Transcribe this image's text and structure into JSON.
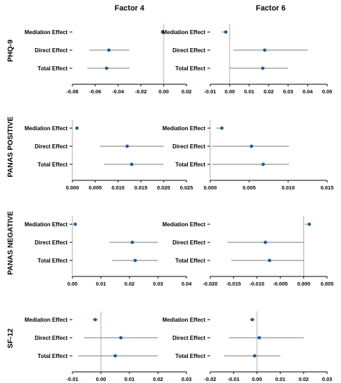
{
  "columns": [
    "Factor 4",
    "Factor 6"
  ],
  "rows": [
    "PHQ-9",
    "PANAS POSITIVE",
    "PANAS NEGATIVE",
    "SF-12"
  ],
  "colors": {
    "point": "#1f5c99",
    "ci": "#4d4d4d",
    "zero_line": "#a6a6a6"
  },
  "chart_data": [
    {
      "type": "scatter",
      "row": "PHQ-9",
      "column": "Factor 4",
      "categories": [
        "Mediation Effect",
        "Direct Effect",
        "Total Effect"
      ],
      "xlim": [
        -0.08,
        0.02
      ],
      "xticks": [
        "-0.08",
        "-0.06",
        "-0.04",
        "-0.02",
        "0.00",
        "0.02"
      ],
      "estimates": [
        -0.001,
        -0.048,
        -0.05
      ],
      "lower": [
        -0.001,
        -0.065,
        -0.067
      ],
      "upper": [
        -0.001,
        -0.03,
        -0.03
      ]
    },
    {
      "type": "scatter",
      "row": "PHQ-9",
      "column": "Factor 6",
      "categories": [
        "Mediation Effect",
        "Direct Effect",
        "Total Effect"
      ],
      "xlim": [
        -0.01,
        0.05
      ],
      "xticks": [
        "-0.01",
        "0.00",
        "0.01",
        "0.02",
        "0.03",
        "0.04",
        "0.05"
      ],
      "estimates": [
        -0.002,
        0.018,
        0.017
      ],
      "lower": [
        -0.004,
        0.002,
        0.0
      ],
      "upper": [
        -0.001,
        0.04,
        0.03
      ]
    },
    {
      "type": "scatter",
      "row": "PANAS POSITIVE",
      "column": "Factor 4",
      "categories": [
        "Mediation Effect",
        "Direct Effect",
        "Total Effect"
      ],
      "xlim": [
        0.0,
        0.025
      ],
      "xticks": [
        "0.000",
        "0.005",
        "0.010",
        "0.015",
        "0.020",
        "0.025"
      ],
      "estimates": [
        0.001,
        0.012,
        0.013
      ],
      "lower": [
        0.001,
        0.006,
        0.007
      ],
      "upper": [
        0.001,
        0.02,
        0.02
      ]
    },
    {
      "type": "scatter",
      "row": "PANAS POSITIVE",
      "column": "Factor 6",
      "categories": [
        "Mediation Effect",
        "Direct Effect",
        "Total Effect"
      ],
      "xlim": [
        0.0,
        0.015
      ],
      "xticks": [
        "0.000",
        "0.005",
        "0.010",
        "0.015"
      ],
      "estimates": [
        0.0015,
        0.0053,
        0.0068
      ],
      "lower": [
        0.0008,
        0.0002,
        0.0003
      ],
      "upper": [
        0.0015,
        0.0101,
        0.0101
      ]
    },
    {
      "type": "scatter",
      "row": "PANAS NEGATIVE",
      "column": "Factor 4",
      "categories": [
        "Mediation Effect",
        "Direct Effect",
        "Total Effect"
      ],
      "xlim": [
        0.0,
        0.04
      ],
      "xticks": [
        "0.00",
        "0.01",
        "0.02",
        "0.03",
        "0.04"
      ],
      "estimates": [
        0.001,
        0.021,
        0.022
      ],
      "lower": [
        0.001,
        0.013,
        0.014
      ],
      "upper": [
        0.001,
        0.03,
        0.03
      ]
    },
    {
      "type": "scatter",
      "row": "PANAS NEGATIVE",
      "column": "Factor 6",
      "categories": [
        "Mediation Effect",
        "Direct Effect",
        "Total Effect"
      ],
      "xlim": [
        -0.02,
        0.005
      ],
      "xticks": [
        "-0.020",
        "-0.015",
        "-0.010",
        "-0.005",
        "0.000",
        "0.005"
      ],
      "estimates": [
        0.0012,
        -0.0082,
        -0.0073
      ],
      "lower": [
        0.0003,
        -0.0163,
        -0.0155
      ],
      "upper": [
        0.0012,
        0.0,
        0.0
      ]
    },
    {
      "type": "scatter",
      "row": "SF-12",
      "column": "Factor 4",
      "categories": [
        "Mediation Effect",
        "Direct Effect",
        "Total Effect"
      ],
      "xlim": [
        -0.01,
        0.03
      ],
      "xticks": [
        "-0.01",
        "0.00",
        "0.01",
        "0.02",
        "0.03"
      ],
      "estimates": [
        -0.002,
        0.007,
        0.005
      ],
      "lower": [
        -0.003,
        -0.006,
        -0.008
      ],
      "upper": [
        -0.001,
        0.02,
        0.02
      ]
    },
    {
      "type": "scatter",
      "row": "SF-12",
      "column": "Factor 6",
      "categories": [
        "Mediation Effect",
        "Direct Effect",
        "Total Effect"
      ],
      "xlim": [
        -0.02,
        0.03
      ],
      "xticks": [
        "-0.02",
        "-0.01",
        "0.00",
        "0.01",
        "0.02",
        "0.03"
      ],
      "estimates": [
        -0.002,
        0.001,
        -0.001
      ],
      "lower": [
        -0.003,
        -0.012,
        -0.014
      ],
      "upper": [
        -0.001,
        0.02,
        0.01
      ]
    }
  ]
}
